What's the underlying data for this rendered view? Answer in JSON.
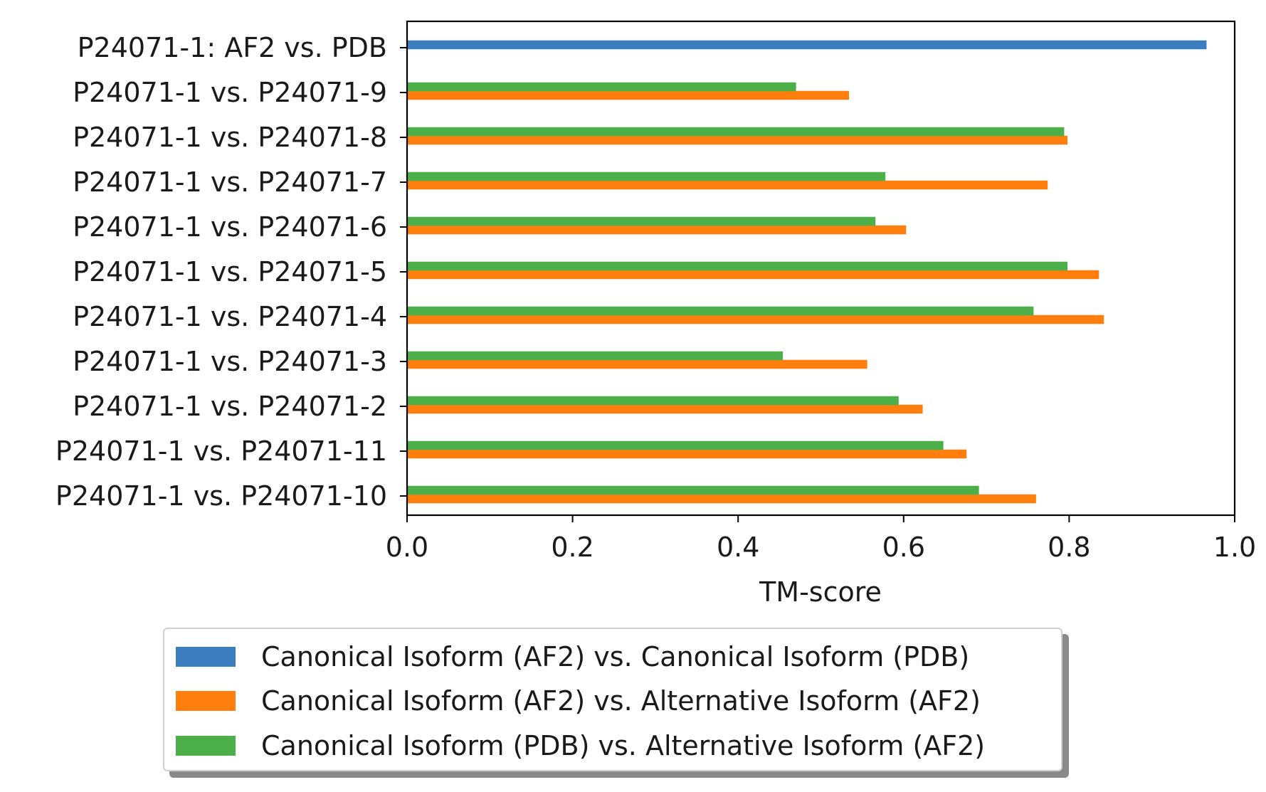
{
  "chart_data": {
    "type": "bar",
    "orientation": "horizontal",
    "categories": [
      "P24071-1: AF2 vs. PDB",
      "P24071-1 vs. P24071-9",
      "P24071-1 vs. P24071-8",
      "P24071-1 vs. P24071-7",
      "P24071-1 vs. P24071-6",
      "P24071-1 vs. P24071-5",
      "P24071-1 vs. P24071-4",
      "P24071-1 vs. P24071-3",
      "P24071-1 vs. P24071-2",
      "P24071-1 vs. P24071-11",
      "P24071-1 vs. P24071-10"
    ],
    "series": [
      {
        "name": "Canonical Isoform (AF2) vs. Canonical Isoform (PDB)",
        "color": "#3b7dbf",
        "values": [
          0.966,
          null,
          null,
          null,
          null,
          null,
          null,
          null,
          null,
          null,
          null
        ]
      },
      {
        "name": "Canonical Isoform (AF2) vs. Alternative Isoform (AF2)",
        "color": "#ff7f0e",
        "values": [
          null,
          0.534,
          0.798,
          0.774,
          0.603,
          0.836,
          0.842,
          0.556,
          0.623,
          0.676,
          0.76
        ]
      },
      {
        "name": "Canonical Isoform (PDB) vs. Alternative Isoform (AF2)",
        "color": "#4daf4a",
        "values": [
          null,
          0.47,
          0.794,
          0.578,
          0.566,
          0.798,
          0.757,
          0.454,
          0.594,
          0.648,
          0.691
        ]
      }
    ],
    "xlabel": "TM-score",
    "ylabel": "",
    "xlim": [
      0.0,
      1.0
    ],
    "xticks": [
      "0.0",
      "0.2",
      "0.4",
      "0.6",
      "0.8",
      "1.0"
    ],
    "grid": false,
    "legend_position": "bottom-center"
  }
}
